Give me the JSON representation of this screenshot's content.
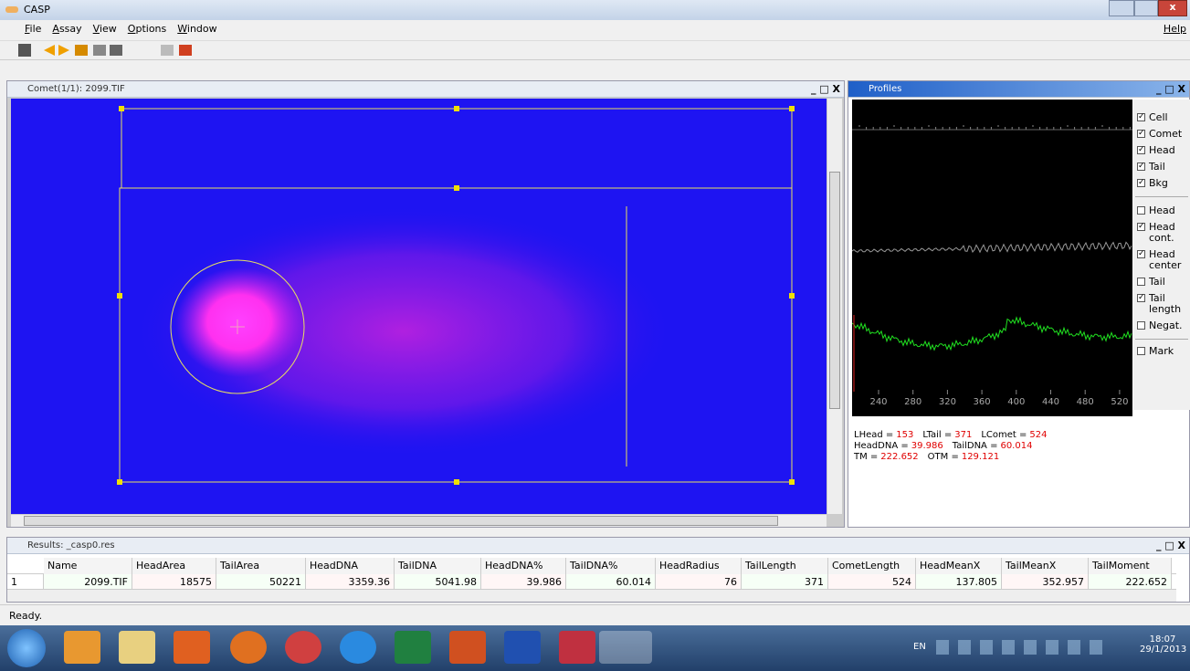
{
  "window": {
    "title": "CASP",
    "help": "Help"
  },
  "menu": [
    "File",
    "Assay",
    "View",
    "Options",
    "Window"
  ],
  "comet_window": {
    "title": "Comet(1/1): 2099.TIF"
  },
  "profiles": {
    "title": "Profiles",
    "options": [
      {
        "label": "Cell",
        "checked": true
      },
      {
        "label": "Comet",
        "checked": true
      },
      {
        "label": "Head",
        "checked": true
      },
      {
        "label": "Tail",
        "checked": true
      },
      {
        "label": "Bkg",
        "checked": true
      },
      {
        "label": "Head",
        "checked": false
      },
      {
        "label": "Head cont.",
        "checked": true
      },
      {
        "label": "Head center",
        "checked": true
      },
      {
        "label": "Tail",
        "checked": false
      },
      {
        "label": "Tail length",
        "checked": true
      },
      {
        "label": "Negat.",
        "checked": false
      },
      {
        "label": "Mark",
        "checked": false
      }
    ],
    "axis_labels": [
      240,
      280,
      320,
      360,
      400,
      440,
      480,
      520
    ],
    "stats": [
      [
        {
          "label": "LHead =",
          "value": 153
        },
        {
          "label": "LTail =",
          "value": 371
        },
        {
          "label": "LComet =",
          "value": 524
        }
      ],
      [
        {
          "label": "HeadDNA =",
          "value": 39.986
        },
        {
          "label": "TailDNA =",
          "value": 60.014
        }
      ],
      [
        {
          "label": "TM =",
          "value": 222.652
        },
        {
          "label": "OTM =",
          "value": 129.121
        }
      ]
    ]
  },
  "results": {
    "title": "Results: _casp0.res",
    "columns": [
      "Name",
      "HeadArea",
      "TailArea",
      "HeadDNA",
      "TailDNA",
      "HeadDNA%",
      "TailDNA%",
      "HeadRadius",
      "TailLength",
      "CometLength",
      "HeadMeanX",
      "TailMeanX",
      "TailMoment"
    ],
    "rows": [
      {
        "index": 1,
        "cells": [
          "2099.TIF",
          18575,
          50221,
          3359.36,
          5041.98,
          39.986,
          60.014,
          76,
          371,
          524,
          137.805,
          352.957,
          222.652
        ]
      }
    ]
  },
  "status": "Ready.",
  "taskbar": {
    "language": "EN",
    "time": "18:07",
    "date": "29/1/2013"
  }
}
